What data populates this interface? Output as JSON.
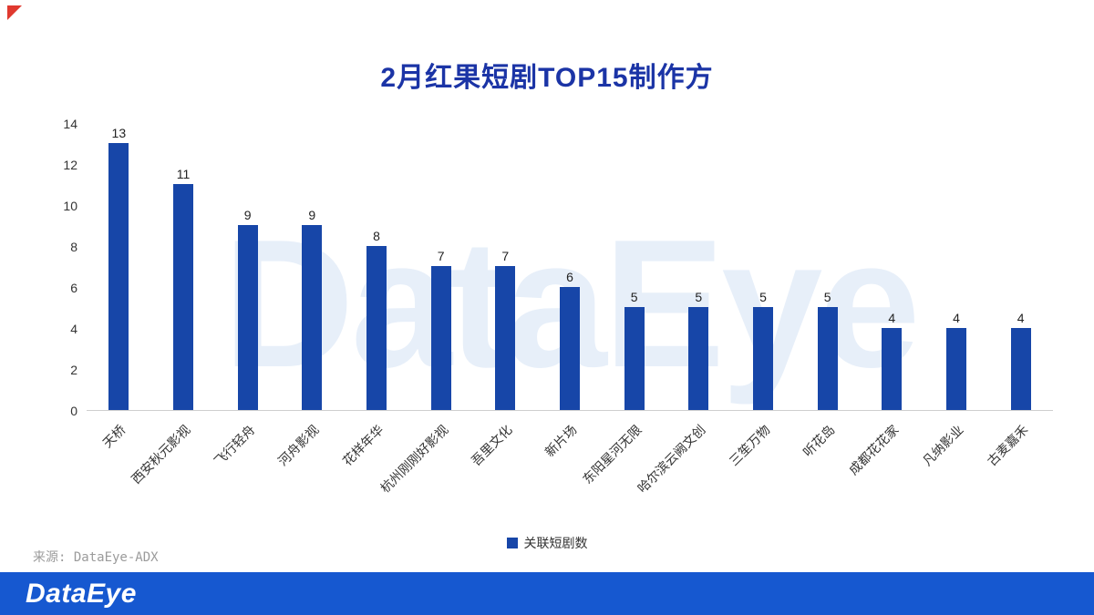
{
  "page": {
    "title": "2月红果短剧TOP15制作方",
    "watermark": "DataEye",
    "source": "来源: DataEye-ADX",
    "footer": {
      "logo": "DataEye"
    },
    "colors": {
      "bar": "#1746A8",
      "title": "#1B34A6",
      "footer_bg": "#1658D0",
      "accent_red": "#E0392F"
    }
  },
  "chart_data": {
    "type": "bar",
    "title": "2月红果短剧TOP15制作方",
    "categories": [
      "天桥",
      "西安秋元影视",
      "飞行轻舟",
      "河舟影视",
      "花样年华",
      "杭州刚刚好影视",
      "吾里文化",
      "新片场",
      "东阳星河无限",
      "哈尔滨云阙文创",
      "三笙万物",
      "听花岛",
      "成都花花家",
      "凡纳影业",
      "古麦嘉禾"
    ],
    "values": [
      13,
      11,
      9,
      9,
      8,
      7,
      7,
      6,
      5,
      5,
      5,
      5,
      4,
      4,
      4
    ],
    "legend": "关联短剧数",
    "ylim": [
      0,
      14
    ],
    "yticks": [
      0,
      2,
      4,
      6,
      8,
      10,
      12,
      14
    ],
    "grid": false,
    "legend_position": "bottom",
    "bar_color": "#1746A8"
  }
}
